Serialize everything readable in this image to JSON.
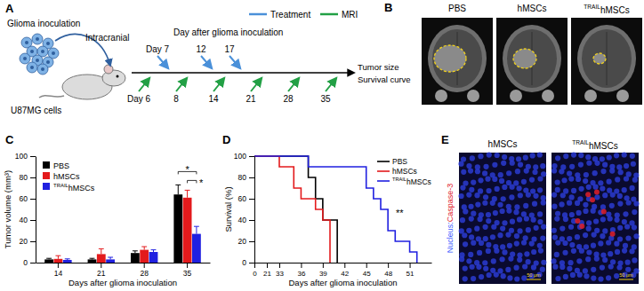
{
  "panel_letters": [
    "A",
    "B",
    "C",
    "D",
    "E"
  ],
  "panel_a": {
    "inoculation": "Glioma inoculation",
    "route": "Intracranial",
    "cells": "U87MG cells",
    "timeline_title": "Day after glioma inoculation",
    "endpoints": [
      "Tumor size",
      "Survival curve"
    ],
    "legend": [
      {
        "name": "Treatment",
        "color": "#4a90d9"
      },
      {
        "name": "MRI",
        "color": "#22a045"
      }
    ],
    "treatment_days": [
      {
        "value": 7,
        "label": "Day 7"
      },
      12,
      17
    ],
    "mri_days": [
      {
        "value": 6,
        "label": "Day 6"
      },
      8,
      14,
      21,
      28,
      35
    ]
  },
  "panel_b": {
    "labels": [
      "PBS",
      "hMSCs",
      "TRAILhMSCs"
    ]
  },
  "panel_e": {
    "labels": [
      "hMSCs",
      "TRAILhMSCs"
    ],
    "stain": [
      {
        "text": "Nucleus:",
        "color": "#3b5bff"
      },
      {
        "text": "Caspase-3",
        "color": "#e0202a"
      }
    ],
    "scale_bar": "50 μm"
  },
  "chart_data": [
    {
      "type": "bar",
      "categories": [
        "14",
        "21",
        "28",
        "35"
      ],
      "x_label": "Days after glioma inoculation",
      "y_label": "Tumor volume (mm³)",
      "ylim": [
        0,
        100
      ],
      "yticks": [
        0,
        20,
        40,
        60,
        80,
        100
      ],
      "legend": "upper left",
      "series": [
        {
          "name": "PBS",
          "color": "#000000",
          "values": [
            3,
            3,
            9,
            64
          ],
          "errors": [
            1,
            1,
            2,
            9
          ]
        },
        {
          "name": "hMSCs",
          "color": "#e31a1c",
          "values": [
            3.5,
            8,
            12,
            61
          ],
          "errors": [
            3,
            5,
            3,
            7
          ]
        },
        {
          "name": "TRAILhMSCs",
          "color": "#2020e0",
          "values": [
            2.5,
            3,
            10,
            27
          ],
          "errors": [
            1,
            2,
            2,
            7
          ]
        }
      ],
      "annotations": [
        {
          "text": "*"
        },
        {
          "text": "*"
        }
      ]
    },
    {
      "type": "line",
      "line_style": "step",
      "x_label": "Days after glioma inoculation",
      "y_label": "Survival (%)",
      "xlim": [
        0,
        54
      ],
      "xticks": [
        0,
        21,
        33,
        36,
        39,
        42,
        45,
        48,
        51
      ],
      "ylim": [
        0,
        100
      ],
      "yticks": [
        0,
        20,
        40,
        60,
        80,
        100
      ],
      "legend": "upper right",
      "series": [
        {
          "name": "PBS",
          "color": "#000000",
          "x": [
            0,
            37,
            38,
            39,
            41
          ],
          "values": [
            100,
            80,
            60,
            40,
            0
          ]
        },
        {
          "name": "hMSCs",
          "color": "#e31a1c",
          "x": [
            0,
            33,
            35,
            36,
            38,
            39,
            40
          ],
          "values": [
            100,
            90,
            70,
            60,
            50,
            40,
            0
          ]
        },
        {
          "name": "TRAILhMSCs",
          "color": "#2020e0",
          "x": [
            0,
            37,
            45,
            46,
            47,
            48,
            49,
            51,
            52
          ],
          "values": [
            100,
            90,
            70,
            60,
            50,
            30,
            20,
            10,
            0
          ]
        }
      ],
      "annotations": [
        {
          "text": "**"
        }
      ]
    }
  ]
}
